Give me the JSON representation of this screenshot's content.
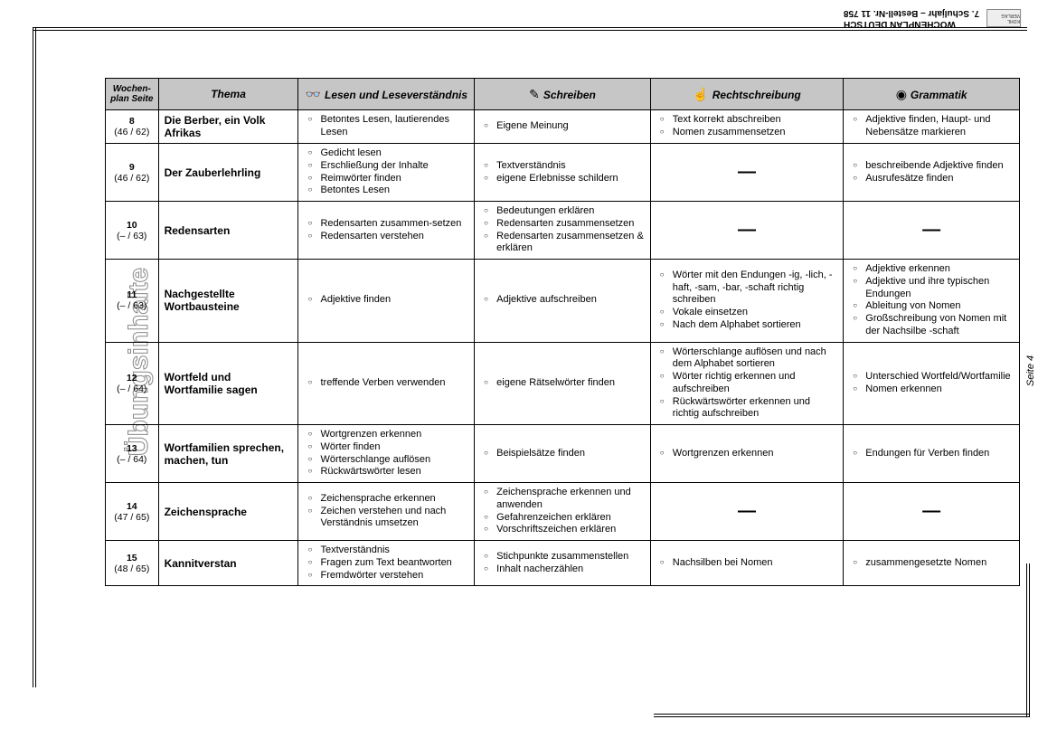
{
  "header": {
    "line1": "WOCHENPLAN DEUTSCH",
    "line2": "7. Schuljahr   –   Bestell-Nr. 11 758",
    "publisher": "KOHL VERLAG"
  },
  "side_title": "Übungsinhalte",
  "page_label": "Seite 4",
  "columns": {
    "c0": "Wochen-plan Seite",
    "c1": "Thema",
    "c2": "Lesen und Leseverständnis",
    "c3": "Schreiben",
    "c4": "Rechtschreibung",
    "c5": "Grammatik"
  },
  "icons": {
    "glasses": "👓",
    "pen": "✎",
    "hand": "☝",
    "target": "◉"
  },
  "rows": [
    {
      "num": "8",
      "page": "(46 / 62)",
      "thema": "Die Berber, ein Volk Afrikas",
      "lesen": [
        "Betontes Lesen, lautierendes Lesen"
      ],
      "schreiben": [
        "Eigene Meinung"
      ],
      "recht": [
        "Text korrekt abschreiben",
        "Nomen zusammensetzen"
      ],
      "gramm": [
        "Adjektive finden, Haupt- und Nebensätze markieren"
      ]
    },
    {
      "num": "9",
      "page": "(46 / 62)",
      "thema": "Der Zauberlehrling",
      "lesen": [
        "Gedicht lesen",
        "Erschließung der Inhalte",
        "Reimwörter finden",
        "Betontes Lesen"
      ],
      "schreiben": [
        "Textverständnis",
        "eigene Erlebnisse schildern"
      ],
      "recht": "—",
      "gramm": [
        "beschreibende Adjektive finden",
        "Ausrufesätze finden"
      ]
    },
    {
      "num": "10",
      "page": "(– / 63)",
      "thema": "Redensarten",
      "lesen": [
        "Redensarten zusammen-setzen",
        "Redensarten verstehen"
      ],
      "schreiben": [
        "Bedeutungen erklären",
        "Redensarten zusammensetzen",
        "Redensarten zusammensetzen & erklären"
      ],
      "recht": "—",
      "gramm": "—"
    },
    {
      "num": "11",
      "page": "(– / 63)",
      "thema": "Nachgestellte Wortbausteine",
      "lesen": [
        "Adjektive finden"
      ],
      "schreiben": [
        "Adjektive aufschreiben"
      ],
      "recht": [
        "Wörter mit den Endungen -ig, -lich, -haft, -sam, -bar, -schaft richtig schreiben",
        "Vokale einsetzen",
        "Nach dem Alphabet sortieren"
      ],
      "gramm": [
        "Adjektive erkennen",
        "Adjektive und ihre typischen Endungen",
        "Ableitung von Nomen",
        "Großschreibung von Nomen mit der Nachsilbe -schaft"
      ]
    },
    {
      "num": "12",
      "page": "(– / 64)",
      "thema": "Wortfeld und Wortfamilie sagen",
      "lesen": [
        "treffende Verben verwenden"
      ],
      "schreiben": [
        "eigene Rätselwörter finden"
      ],
      "recht": [
        "Wörterschlange auflösen und nach dem Alphabet sortieren",
        "Wörter richtig erkennen und aufschreiben",
        "Rückwärtswörter erkennen und richtig aufschreiben"
      ],
      "gramm": [
        "Unterschied Wortfeld/Wortfamilie",
        "Nomen erkennen"
      ]
    },
    {
      "num": "13",
      "page": "(– / 64)",
      "thema": "Wortfamilien sprechen, machen, tun",
      "lesen": [
        "Wortgrenzen erkennen",
        "Wörter finden",
        "Wörterschlange auflösen",
        "Rückwärtswörter lesen"
      ],
      "schreiben": [
        "Beispielsätze finden"
      ],
      "recht": [
        "Wortgrenzen erkennen"
      ],
      "gramm": [
        "Endungen für Verben finden"
      ]
    },
    {
      "num": "14",
      "page": "(47 / 65)",
      "thema": "Zeichensprache",
      "lesen": [
        "Zeichensprache erkennen",
        "Zeichen verstehen und nach Verständnis umsetzen"
      ],
      "schreiben": [
        "Zeichensprache erkennen und anwenden",
        "Gefahrenzeichen erklären",
        "Vorschriftszeichen erklären"
      ],
      "recht": "—",
      "gramm": "—"
    },
    {
      "num": "15",
      "page": "(48 / 65)",
      "thema": "Kannitverstan",
      "lesen": [
        "Textverständnis",
        "Fragen zum Text beantworten",
        "Fremdwörter verstehen"
      ],
      "schreiben": [
        "Stichpunkte zusammenstellen",
        "Inhalt nacherzählen"
      ],
      "recht": [
        "Nachsilben bei Nomen"
      ],
      "gramm": [
        "zusammengesetzte Nomen"
      ]
    }
  ]
}
